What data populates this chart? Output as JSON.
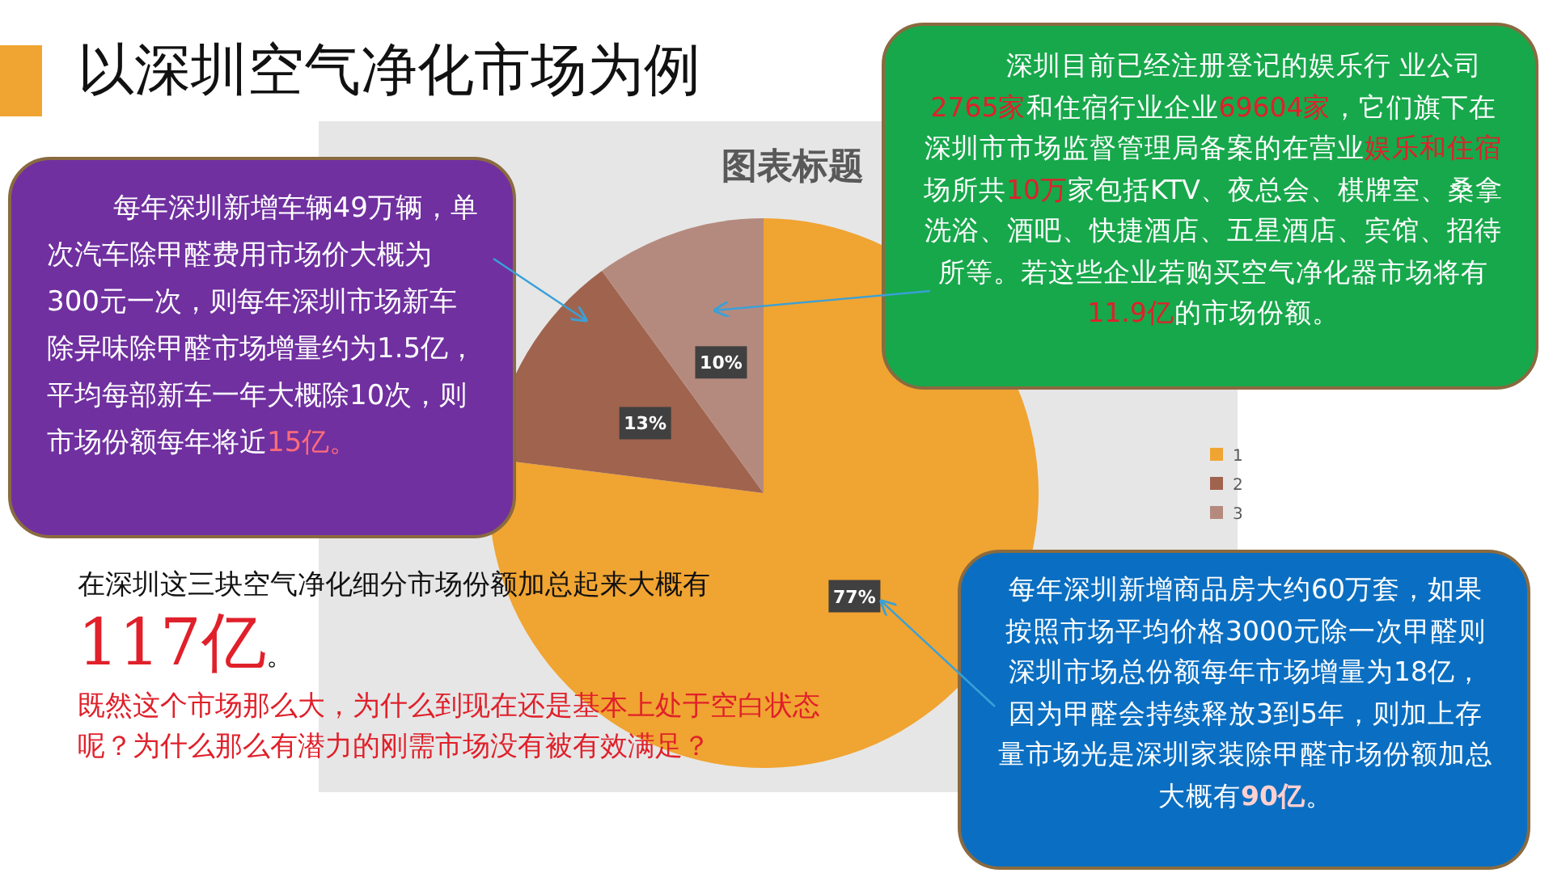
{
  "chart_data": {
    "type": "pie",
    "title": "图表标题",
    "categories": [
      "1",
      "2",
      "3"
    ],
    "values": [
      77,
      13,
      10
    ],
    "colors": [
      "#f0a431",
      "#a0634e",
      "#b58a7e"
    ],
    "value_labels": [
      "77%",
      "13%",
      "10%"
    ],
    "legend": "right",
    "annotations": [
      "以深圳空气净化市场为例",
      "每年深圳新增车辆49万辆，单次汽车除甲醛费用市场价大概为300元一次，则每年深圳市场新车除异味除甲醛市场增量约为1.5亿，平均每部新车一年大概除10次，则市场份额每年将近**15亿。**",
      "深圳目前已经注册登记的娱乐行 业公司**2765家**和住宿行业企业**69604家**，它们旗下在深圳市市场监督管理局备案的在营业**娱乐和住宿**场所共**10万**家包括KTV、夜总会、棋牌室、桑拿洗浴、酒吧、快捷酒店、五星酒店、宾馆、招待所等。若这些企业若购买空气净化器市场将有**11.9亿**的市场份额。",
      "每年深圳新增商品房大约60万套，如果按照市场平均价格3000元除一次甲醛则深圳市场总份额每年市场增量为18亿，因为甲醛会持续释放3到5年，则加上存量市场光是深圳家装除甲醛市场份额加总大概有**90亿**。",
      "在深圳这三块空气净化细分市场份额加总起来大概有**117亿**。",
      "既然这个市场那么大，为什么到现在还是基本上处于空白状态呢？为什么那么有潜力的刚需市场没有被有效满足？"
    ]
  }
}
